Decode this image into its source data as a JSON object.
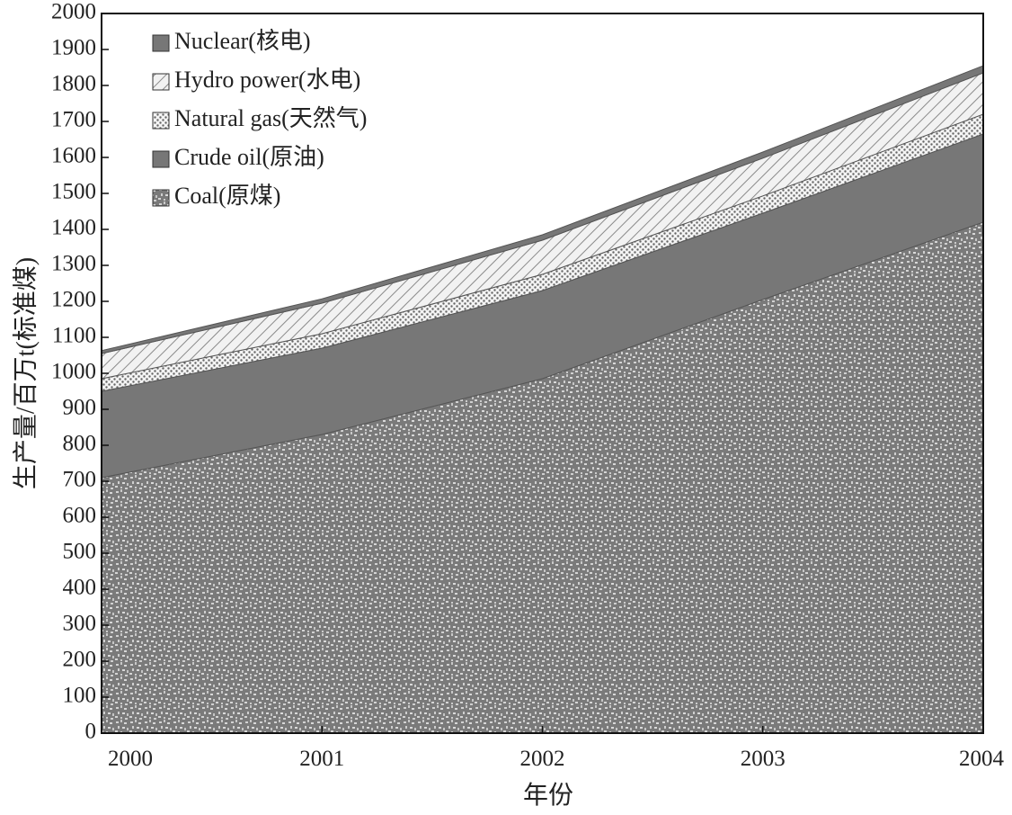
{
  "chart_data": {
    "type": "area",
    "stacked": true,
    "title": "",
    "xlabel": "年份",
    "ylabel": "生产量/百万t(标准煤)",
    "x": [
      2000,
      2001,
      2002,
      2003,
      2004
    ],
    "xlim": [
      2000,
      2004
    ],
    "ylim": [
      0,
      2000
    ],
    "x_ticks": [
      "2000",
      "2001",
      "2002",
      "2003",
      "2004"
    ],
    "y_ticks": [
      0,
      100,
      200,
      300,
      400,
      500,
      600,
      700,
      800,
      900,
      1000,
      1100,
      1200,
      1300,
      1400,
      1500,
      1600,
      1700,
      1800,
      1900,
      2000
    ],
    "grid": false,
    "legend_position": "top-left",
    "series": [
      {
        "name": "Coal(原煤)",
        "values": [
          710,
          830,
          985,
          1205,
          1420
        ],
        "pattern": "speckled-gray"
      },
      {
        "name": "Crude oil(原油)",
        "values": [
          240,
          240,
          245,
          240,
          245
        ],
        "pattern": "solid-gray"
      },
      {
        "name": "Natural gas(天然气)",
        "values": [
          35,
          40,
          45,
          48,
          55
        ],
        "pattern": "dotted"
      },
      {
        "name": "Hydro power(水电)",
        "values": [
          70,
          85,
          95,
          105,
          115
        ],
        "pattern": "hatched"
      },
      {
        "name": "Nuclear(核电)",
        "values": [
          8,
          12,
          15,
          17,
          20
        ],
        "pattern": "solid-gray"
      }
    ],
    "legend_order": [
      "Nuclear(核电)",
      "Hydro power(水电)",
      "Natural gas(天然气)",
      "Crude oil(原油)",
      "Coal(原煤)"
    ],
    "colors": {
      "fill": "#777777",
      "speckle_dark": "#6a6a6a",
      "speckle_light": "#d8d8d8",
      "line": "#111111"
    }
  }
}
